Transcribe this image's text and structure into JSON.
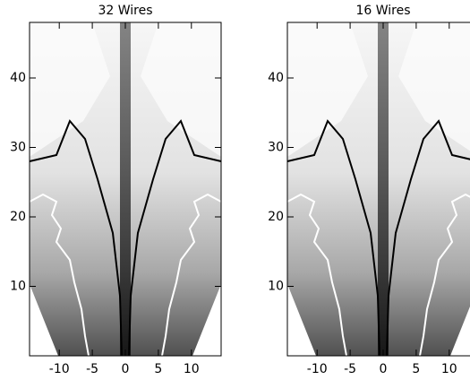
{
  "chart_data": [
    {
      "type": "heatmap",
      "title": "32 Wires",
      "xlim": [
        -14.5,
        14.5
      ],
      "ylim": [
        0,
        48
      ],
      "xticks": [
        -10,
        -5,
        0,
        5,
        10
      ],
      "yticks": [
        10,
        20,
        30,
        40
      ]
    },
    {
      "type": "heatmap",
      "title": "16 Wires",
      "xlim": [
        -14.5,
        14.5
      ],
      "ylim": [
        0,
        48
      ],
      "xticks": [
        -10,
        -5,
        0,
        5,
        10
      ],
      "yticks": [
        10,
        20,
        30,
        40
      ]
    }
  ]
}
